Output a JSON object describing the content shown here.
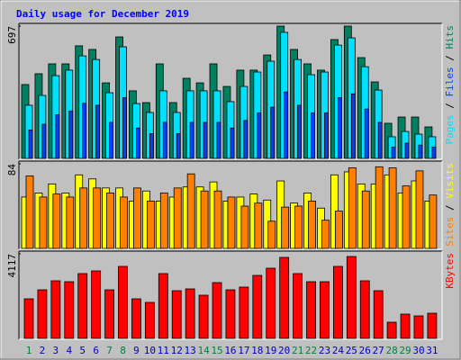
{
  "chart_data": [
    {
      "type": "bar",
      "title": "Daily usage for December 2019",
      "title_color": "#0000ff",
      "ylim": [
        0,
        697
      ],
      "yticks": [
        697
      ],
      "legend_separator": " / ",
      "series": [
        {
          "name": "Pages",
          "color": "#00e0ff",
          "values": [
            280,
            332,
            436,
            465,
            540,
            521,
            346,
            588,
            289,
            242,
            356,
            242,
            356,
            356,
            356,
            299,
            379,
            455,
            512,
            664,
            521,
            441,
            455,
            597,
            635,
            483,
            360,
            114,
            142,
            128,
            114
          ]
        },
        {
          "name": "Files",
          "color": "#0040ff",
          "values": [
            150,
            180,
            230,
            250,
            290,
            280,
            190,
            320,
            160,
            130,
            190,
            130,
            190,
            190,
            190,
            160,
            200,
            240,
            270,
            350,
            280,
            240,
            240,
            320,
            340,
            260,
            190,
            60,
            80,
            70,
            60
          ]
        },
        {
          "name": "Hits",
          "color": "#008060",
          "values": [
            389,
            446,
            498,
            498,
            593,
            574,
            398,
            640,
            356,
            294,
            498,
            294,
            422,
            398,
            498,
            379,
            465,
            465,
            545,
            697,
            574,
            498,
            465,
            626,
            697,
            531,
            403,
            185,
            218,
            218,
            166
          ]
        }
      ]
    },
    {
      "type": "bar",
      "ylim": [
        0,
        84
      ],
      "yticks": [
        84
      ],
      "legend_separator": " / ",
      "series": [
        {
          "name": "Sites",
          "color": "#ff8000",
          "values": [
            72,
            51,
            54,
            51,
            60,
            60,
            55,
            51,
            60,
            47,
            55,
            60,
            74,
            57,
            57,
            51,
            42,
            45,
            27,
            41,
            42,
            47,
            28,
            37,
            80,
            57,
            81,
            80,
            62,
            77,
            53
          ]
        },
        {
          "name": "Visits",
          "color": "#ffff00",
          "values": [
            51,
            55,
            64,
            55,
            73,
            69,
            60,
            60,
            47,
            57,
            47,
            51,
            61,
            61,
            66,
            47,
            51,
            54,
            48,
            67,
            45,
            55,
            40,
            73,
            76,
            64,
            64,
            73,
            55,
            67,
            47
          ]
        }
      ]
    },
    {
      "type": "bar",
      "ylim": [
        0,
        4117
      ],
      "yticks": [
        4117
      ],
      "series": [
        {
          "name": "KBytes",
          "color": "#ff0000",
          "values": [
            1927,
            2365,
            2803,
            2759,
            3154,
            3285,
            2365,
            3504,
            1927,
            1752,
            3154,
            2321,
            2409,
            2102,
            2716,
            2365,
            2497,
            3066,
            3416,
            3942,
            3154,
            2759,
            2759,
            3504,
            3986,
            2803,
            2321,
            788,
            1183,
            1095,
            1226
          ]
        }
      ],
      "categories": [
        "1",
        "2",
        "3",
        "4",
        "5",
        "6",
        "7",
        "8",
        "9",
        "10",
        "11",
        "12",
        "13",
        "14",
        "15",
        "16",
        "17",
        "18",
        "19",
        "20",
        "21",
        "22",
        "23",
        "24",
        "25",
        "26",
        "27",
        "28",
        "29",
        "30",
        "31"
      ],
      "category_colors": [
        "#008040",
        "#0000c0",
        "#0000c0",
        "#0000c0",
        "#0000c0",
        "#0000c0",
        "#008040",
        "#008040",
        "#0000c0",
        "#0000c0",
        "#0000c0",
        "#0000c0",
        "#0000c0",
        "#008040",
        "#008040",
        "#0000c0",
        "#0000c0",
        "#0000c0",
        "#0000c0",
        "#0000c0",
        "#008040",
        "#008040",
        "#0000c0",
        "#0000c0",
        "#0000c0",
        "#0000c0",
        "#0000c0",
        "#008040",
        "#008040",
        "#0000c0",
        "#0000c0"
      ]
    }
  ]
}
